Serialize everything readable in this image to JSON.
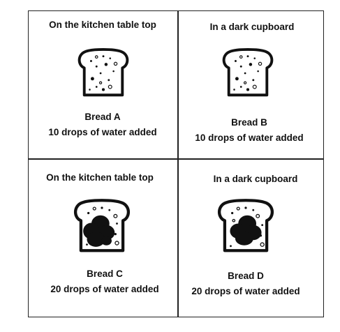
{
  "cells": [
    {
      "location": "On the kitchen table top",
      "bread_name": "Bread A",
      "water": "10 drops of water added",
      "mold": false
    },
    {
      "location": "In a dark cupboard",
      "bread_name": "Bread B",
      "water": "10 drops of water added",
      "mold": false
    },
    {
      "location": "On the kitchen table top",
      "bread_name": "Bread C",
      "water": "20 drops of water added",
      "mold": true
    },
    {
      "location": "In a dark cupboard",
      "bread_name": "Bread D",
      "water": "20 drops of water added",
      "mold": true
    }
  ],
  "icon": "bread-slice-icon",
  "colors": {
    "ink": "#111111",
    "mold": "#111111",
    "background": "#ffffff"
  }
}
